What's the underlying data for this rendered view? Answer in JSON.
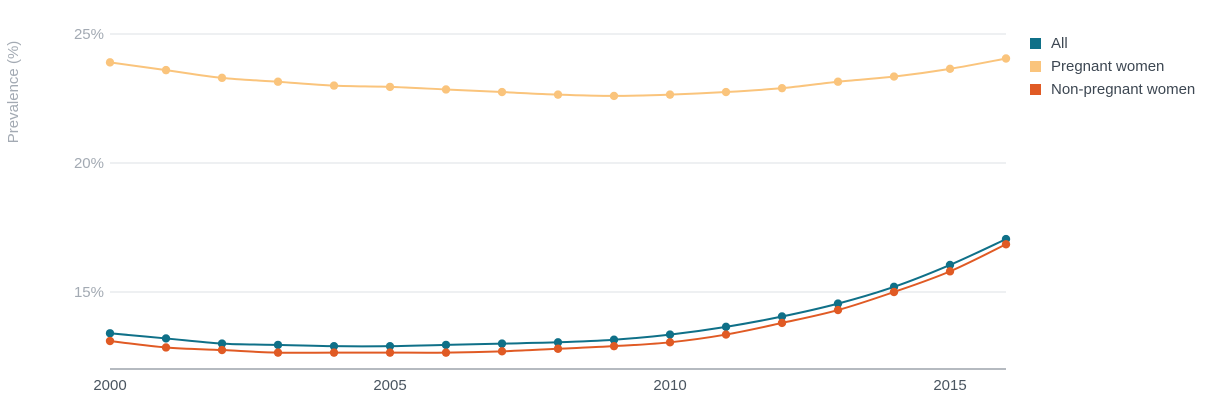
{
  "chart_data": {
    "type": "line",
    "ylabel": "Prevalence (%)",
    "ylim": [
      12.0,
      25.5
    ],
    "yticks": [
      15,
      20,
      25
    ],
    "ytick_labels": [
      "15%",
      "20%",
      "25%"
    ],
    "xlim": [
      2000,
      2016
    ],
    "xticks": [
      2000,
      2005,
      2010,
      2015
    ],
    "xtick_labels": [
      "2000",
      "2005",
      "2010",
      "2015"
    ],
    "grid": true,
    "legend_position": "top-right",
    "x": [
      2000,
      2001,
      2002,
      2003,
      2004,
      2005,
      2006,
      2007,
      2008,
      2009,
      2010,
      2011,
      2012,
      2013,
      2014,
      2015,
      2016
    ],
    "series": [
      {
        "name": "All",
        "color": "#0f7088",
        "values": [
          13.4,
          13.2,
          13.0,
          12.95,
          12.9,
          12.9,
          12.95,
          13.0,
          13.05,
          13.15,
          13.35,
          13.65,
          14.05,
          14.55,
          15.2,
          16.05,
          17.05
        ]
      },
      {
        "name": "Pregnant women",
        "color": "#fac47c",
        "values": [
          23.9,
          23.6,
          23.3,
          23.15,
          23.0,
          22.95,
          22.85,
          22.75,
          22.65,
          22.6,
          22.65,
          22.75,
          22.9,
          23.15,
          23.35,
          23.65,
          24.05
        ]
      },
      {
        "name": "Non-pregnant women",
        "color": "#e05a24",
        "values": [
          13.1,
          12.85,
          12.75,
          12.65,
          12.65,
          12.65,
          12.65,
          12.7,
          12.8,
          12.9,
          13.05,
          13.35,
          13.8,
          14.3,
          15.0,
          15.8,
          16.85
        ]
      }
    ]
  }
}
